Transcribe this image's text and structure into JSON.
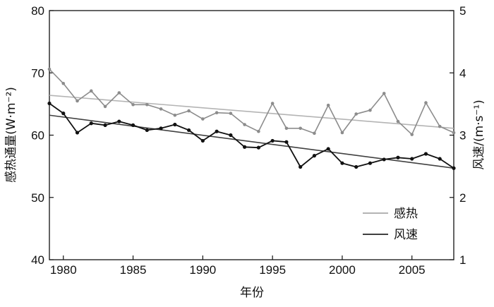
{
  "chart_data": {
    "type": "line",
    "x": [
      1979,
      1980,
      1981,
      1982,
      1983,
      1984,
      1985,
      1986,
      1987,
      1988,
      1989,
      1990,
      1991,
      1992,
      1993,
      1994,
      1995,
      1996,
      1997,
      1998,
      1999,
      2000,
      2001,
      2002,
      2003,
      2004,
      2005,
      2006,
      2007,
      2008
    ],
    "xlabel": "年份",
    "xlim": [
      1979,
      2008
    ],
    "x_ticks": [
      1980,
      1985,
      1990,
      1995,
      2000,
      2005
    ],
    "ylabel_left": "感热通量(W·m⁻²)",
    "ylim_left": [
      40,
      80
    ],
    "y_ticks_left": [
      40,
      50,
      60,
      70,
      80
    ],
    "ylabel_right": "风速/(m·s⁻¹)",
    "ylim_right": [
      1,
      5
    ],
    "y_ticks_right": [
      1,
      2,
      3,
      4,
      5
    ],
    "legend_position": "bottom-right",
    "series": [
      {
        "name": "感热",
        "axis": "left",
        "color": "#8c8c8c",
        "trend_color": "#b4b4b4",
        "values": [
          70.6,
          68.3,
          65.5,
          67.1,
          64.6,
          66.8,
          64.9,
          64.9,
          64.2,
          63.2,
          63.9,
          62.6,
          63.6,
          63.5,
          61.7,
          60.6,
          65.1,
          61.1,
          61.1,
          60.3,
          64.8,
          60.4,
          63.4,
          64.0,
          66.7,
          62.2,
          60.1,
          65.2,
          61.4,
          60.4
        ],
        "trend": [
          66.4,
          61.1
        ]
      },
      {
        "name": "风速",
        "axis": "right",
        "color": "#111111",
        "trend_color": "#404040",
        "values": [
          3.51,
          3.35,
          3.04,
          3.19,
          3.16,
          3.22,
          3.16,
          3.08,
          3.11,
          3.17,
          3.08,
          2.91,
          3.06,
          3.0,
          2.81,
          2.8,
          2.91,
          2.89,
          2.49,
          2.67,
          2.78,
          2.55,
          2.49,
          2.55,
          2.61,
          2.64,
          2.62,
          2.7,
          2.62,
          2.47
        ],
        "trend": [
          3.32,
          2.47
        ]
      }
    ]
  }
}
